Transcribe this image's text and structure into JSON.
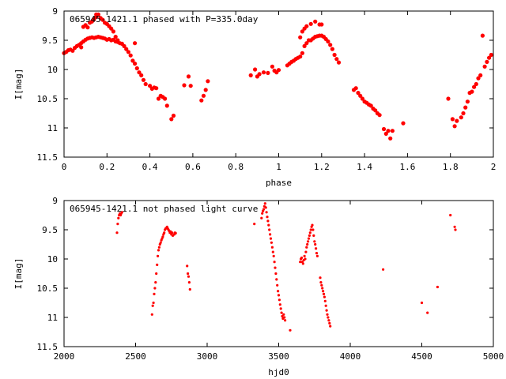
{
  "chart_data": [
    {
      "type": "scatter",
      "title": "065945-1421.1 phased with P=335.0day",
      "xlabel": "phase",
      "ylabel": "I[mag]",
      "xlim": [
        0,
        2
      ],
      "ylim": [
        9,
        11.5
      ],
      "y_inverted": true,
      "grid": false,
      "color": "#ff0000",
      "marker_size": 2.6,
      "xticks": [
        0,
        0.2,
        0.4,
        0.6,
        0.8,
        1,
        1.2,
        1.4,
        1.6,
        1.8,
        2
      ],
      "yticks": [
        9,
        9.5,
        10,
        10.5,
        11,
        11.5
      ],
      "xtick_labels": [
        "0",
        "0.2",
        "0.4",
        "0.6",
        "0.8",
        "1",
        "1.2",
        "1.4",
        "1.6",
        "1.8",
        "2"
      ],
      "ytick_labels": [
        "9",
        "9.5",
        "10",
        "10.5",
        "11",
        "11.5"
      ],
      "series": [
        {
          "x": [
            0.0,
            0.01,
            0.02,
            0.03,
            0.04,
            0.05,
            0.06,
            0.07,
            0.08,
            0.09,
            0.1,
            0.11,
            0.12,
            0.13,
            0.14,
            0.15,
            0.16,
            0.17,
            0.18,
            0.19,
            0.2,
            0.21,
            0.22,
            0.23,
            0.24,
            0.25,
            0.08,
            0.09,
            0.1,
            0.11,
            0.12,
            0.13,
            0.14,
            0.15,
            0.16,
            0.17,
            0.18,
            0.19,
            0.2,
            0.21,
            0.22,
            0.23,
            0.24,
            0.25,
            0.26,
            0.27,
            0.28,
            0.29,
            0.3,
            0.31,
            0.32,
            0.33,
            0.34,
            0.35,
            0.36,
            0.37,
            0.38,
            0.4,
            0.41,
            0.42,
            0.43,
            0.44,
            0.45,
            0.46,
            0.47,
            0.48,
            0.5,
            0.51,
            0.33,
            0.15,
            0.56,
            0.58,
            0.59,
            0.64,
            0.65,
            0.66,
            0.67,
            0.87,
            0.89,
            0.9,
            0.91,
            0.93,
            0.95,
            0.97,
            0.98,
            0.99,
            1.0,
            1.04,
            1.05,
            1.06,
            1.07,
            1.08,
            1.09,
            1.1,
            1.11,
            1.12,
            1.13,
            1.14,
            1.15,
            1.16,
            1.17,
            1.18,
            1.19,
            1.2,
            1.21,
            1.22,
            1.23,
            1.24,
            1.25,
            1.26,
            1.27,
            1.28,
            1.1,
            1.11,
            1.12,
            1.13,
            1.15,
            1.17,
            1.19,
            1.2,
            1.35,
            1.36,
            1.37,
            1.38,
            1.39,
            1.4,
            1.41,
            1.42,
            1.43,
            1.44,
            1.45,
            1.46,
            1.47,
            1.49,
            1.5,
            1.51,
            1.52,
            1.53,
            1.58,
            1.79,
            1.81,
            1.82,
            1.83,
            1.85,
            1.86,
            1.87,
            1.88,
            1.89,
            1.9,
            1.91,
            1.92,
            1.93,
            1.94,
            1.95,
            1.96,
            1.97,
            1.98,
            1.99
          ],
          "y": [
            9.72,
            9.7,
            9.67,
            9.66,
            9.68,
            9.63,
            9.6,
            9.58,
            9.55,
            9.52,
            9.49,
            9.47,
            9.46,
            9.45,
            9.46,
            9.45,
            9.44,
            9.45,
            9.46,
            9.47,
            9.49,
            9.48,
            9.5,
            9.49,
            9.52,
            9.53,
            9.62,
            9.27,
            9.24,
            9.28,
            9.2,
            9.18,
            9.14,
            9.1,
            9.06,
            9.12,
            9.15,
            9.2,
            9.22,
            9.26,
            9.3,
            9.35,
            9.44,
            9.5,
            9.55,
            9.56,
            9.6,
            9.65,
            9.7,
            9.76,
            9.85,
            9.9,
            9.98,
            10.05,
            10.1,
            10.18,
            10.25,
            10.28,
            10.33,
            10.31,
            10.32,
            10.5,
            10.45,
            10.47,
            10.5,
            10.62,
            10.85,
            10.79,
            9.55,
            9.06,
            10.27,
            10.12,
            10.28,
            10.53,
            10.45,
            10.35,
            10.2,
            10.1,
            10.0,
            10.12,
            10.08,
            10.05,
            10.06,
            9.95,
            10.02,
            10.05,
            10.01,
            9.93,
            9.9,
            9.87,
            9.85,
            9.82,
            9.8,
            9.78,
            9.72,
            9.6,
            9.55,
            9.5,
            9.5,
            9.47,
            9.44,
            9.43,
            9.42,
            9.42,
            9.44,
            9.48,
            9.52,
            9.58,
            9.65,
            9.75,
            9.82,
            9.88,
            9.45,
            9.35,
            9.3,
            9.26,
            9.22,
            9.18,
            9.23,
            9.23,
            10.35,
            10.32,
            10.4,
            10.45,
            10.5,
            10.55,
            10.57,
            10.6,
            10.62,
            10.67,
            10.7,
            10.75,
            10.78,
            11.02,
            11.1,
            11.05,
            11.18,
            11.05,
            10.92,
            10.5,
            10.85,
            10.97,
            10.88,
            10.82,
            10.75,
            10.65,
            10.55,
            10.4,
            10.38,
            10.3,
            10.25,
            10.15,
            10.1,
            9.42,
            9.95,
            9.87,
            9.8,
            9.75
          ]
        }
      ]
    },
    {
      "type": "scatter",
      "title": "065945-1421.1 not phased light curve",
      "xlabel": "hjd0",
      "ylabel": "I[mag]",
      "xlim": [
        2000,
        5000
      ],
      "ylim": [
        9,
        11.5
      ],
      "y_inverted": true,
      "grid": false,
      "color": "#ff0000",
      "marker_size": 1.6,
      "xticks": [
        2000,
        2500,
        3000,
        3500,
        4000,
        4500,
        5000
      ],
      "yticks": [
        9,
        9.5,
        10,
        10.5,
        11,
        11.5
      ],
      "xtick_labels": [
        "2000",
        "2500",
        "3000",
        "3500",
        "4000",
        "4500",
        "5000"
      ],
      "ytick_labels": [
        "9",
        "9.5",
        "10",
        "10.5",
        "11",
        "11.5"
      ],
      "series": [
        {
          "x": [
            2370,
            2375,
            2380,
            2385,
            2390,
            2395,
            2400,
            2405,
            2615,
            2620,
            2625,
            2630,
            2635,
            2640,
            2645,
            2650,
            2655,
            2660,
            2665,
            2670,
            2675,
            2680,
            2685,
            2690,
            2695,
            2700,
            2705,
            2710,
            2715,
            2720,
            2725,
            2730,
            2735,
            2740,
            2745,
            2750,
            2755,
            2760,
            2770,
            2775,
            2780,
            2860,
            2865,
            2870,
            2875,
            2880,
            3330,
            3380,
            3385,
            3390,
            3395,
            3400,
            3405,
            3410,
            3415,
            3420,
            3425,
            3430,
            3435,
            3440,
            3445,
            3450,
            3455,
            3460,
            3465,
            3470,
            3475,
            3480,
            3485,
            3490,
            3495,
            3500,
            3505,
            3510,
            3515,
            3520,
            3525,
            3530,
            3535,
            3540,
            3545,
            3580,
            3650,
            3655,
            3660,
            3665,
            3670,
            3675,
            3680,
            3685,
            3690,
            3695,
            3700,
            3705,
            3710,
            3715,
            3720,
            3725,
            3730,
            3735,
            3740,
            3745,
            3750,
            3755,
            3760,
            3765,
            3770,
            3790,
            3795,
            3800,
            3805,
            3810,
            3815,
            3820,
            3825,
            3830,
            3835,
            3840,
            3845,
            3850,
            3855,
            3860,
            4230,
            4500,
            4540,
            4610,
            4700,
            4730,
            4735
          ],
          "y": [
            9.55,
            9.4,
            9.3,
            9.25,
            9.22,
            9.25,
            9.22,
            9.2,
            10.95,
            10.8,
            10.75,
            10.6,
            10.5,
            10.4,
            10.25,
            10.1,
            9.95,
            9.85,
            9.8,
            9.75,
            9.72,
            9.68,
            9.65,
            9.62,
            9.58,
            9.55,
            9.5,
            9.48,
            9.47,
            9.45,
            9.48,
            9.5,
            9.52,
            9.55,
            9.53,
            9.58,
            9.55,
            9.6,
            9.58,
            9.55,
            9.56,
            10.12,
            10.25,
            10.3,
            10.4,
            10.52,
            9.4,
            9.3,
            9.22,
            9.18,
            9.15,
            9.1,
            9.05,
            9.12,
            9.2,
            9.28,
            9.35,
            9.42,
            9.5,
            9.58,
            9.65,
            9.72,
            9.8,
            9.88,
            9.95,
            10.05,
            10.15,
            10.25,
            10.35,
            10.45,
            10.55,
            10.62,
            10.7,
            10.78,
            10.85,
            10.92,
            10.98,
            11.02,
            10.95,
            11.0,
            11.05,
            11.22,
            10.05,
            10.0,
            9.98,
            10.05,
            10.08,
            10.02,
            9.95,
            10.0,
            9.88,
            9.8,
            9.75,
            9.7,
            9.65,
            9.6,
            9.55,
            9.5,
            9.45,
            9.42,
            9.5,
            9.6,
            9.7,
            9.75,
            9.82,
            9.9,
            9.95,
            10.32,
            10.4,
            10.45,
            10.5,
            10.55,
            10.6,
            10.65,
            10.72,
            10.8,
            10.88,
            10.95,
            11.0,
            11.05,
            11.1,
            11.15,
            10.18,
            10.75,
            10.92,
            10.48,
            9.25,
            9.45,
            9.5
          ]
        }
      ]
    }
  ]
}
